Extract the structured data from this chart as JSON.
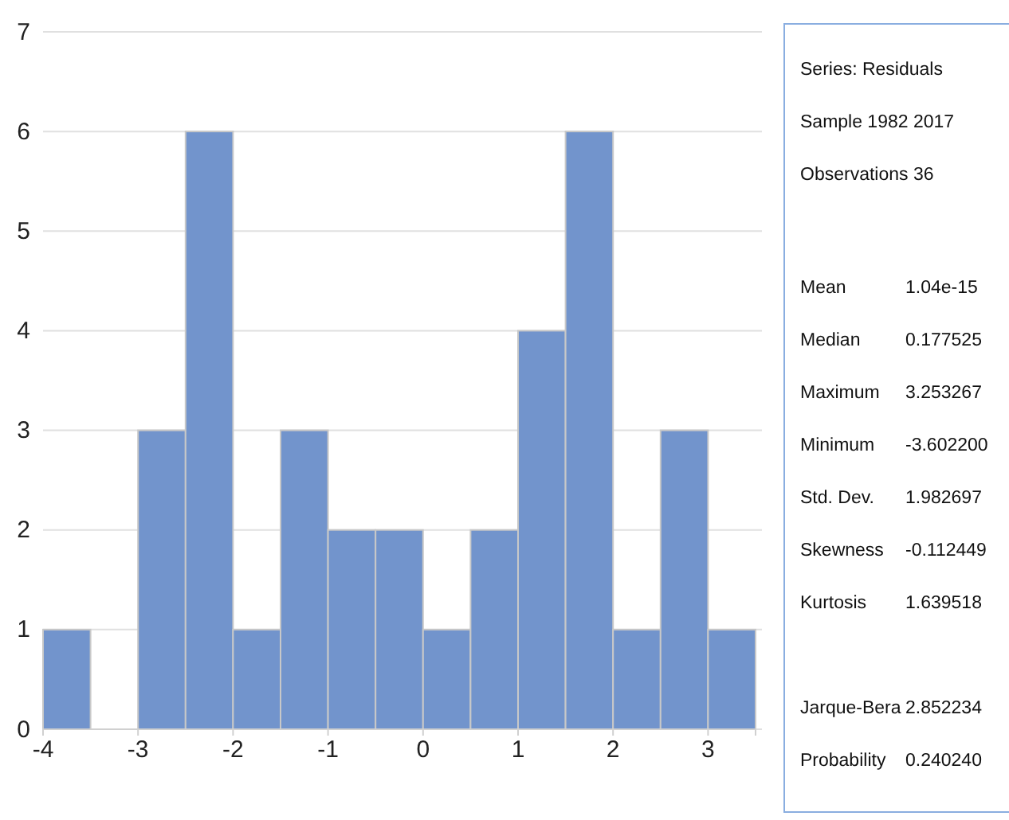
{
  "chart_data": [
    {
      "type": "histogram",
      "bins": [
        -4,
        -3.5,
        -3,
        -2.5,
        -2,
        -1.5,
        -1,
        -0.5,
        0,
        0.5,
        1,
        1.5,
        2,
        2.5,
        3,
        3.5
      ],
      "values": [
        1,
        0,
        3,
        6,
        1,
        3,
        2,
        2,
        1,
        2,
        4,
        6,
        1,
        3,
        1
      ],
      "color": "#7294cc",
      "xlim": [
        -4,
        3.5
      ],
      "xticks": [
        -4,
        -3,
        -2,
        -1,
        0,
        1,
        2,
        3
      ],
      "ylim": [
        0,
        7
      ],
      "yticks": [
        0,
        1,
        2,
        3,
        4,
        5,
        6,
        7
      ],
      "grid": "y"
    },
    {
      "type": "other",
      "annotations": [
        "Series: Residuals",
        "Sample 1982 2017",
        "Observations 36",
        "Mean",
        "1.04e-15",
        "Median",
        "0.177525",
        "Maximum",
        "3.253267",
        "Minimum",
        "-3.602200",
        "Std. Dev.",
        "1.982697",
        "Skewness",
        "-0.112449",
        "Kurtosis",
        "1.639518",
        "Jarque-Bera",
        "2.852234",
        "Probability",
        "0.240240"
      ]
    }
  ]
}
